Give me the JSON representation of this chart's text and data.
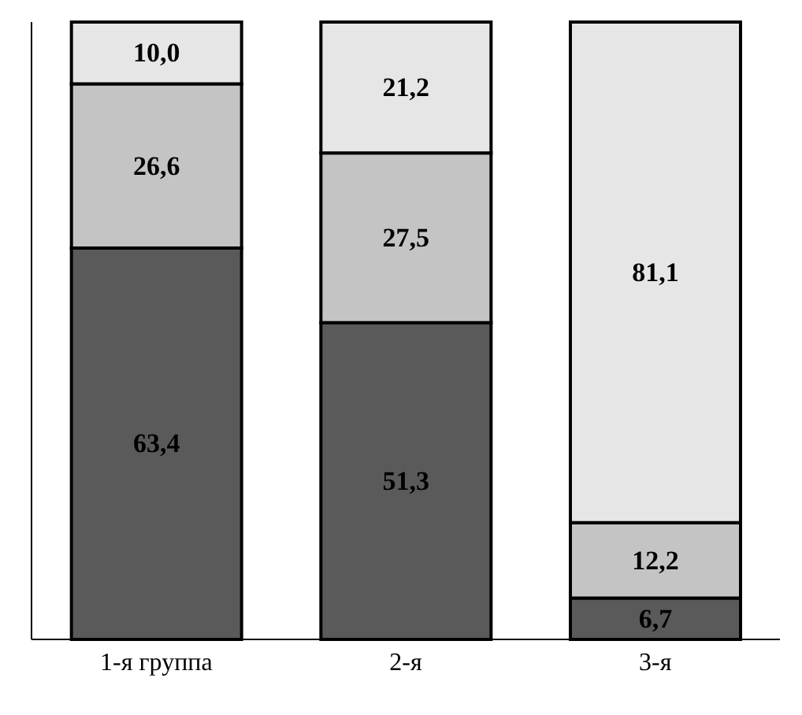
{
  "chart_data": {
    "type": "bar",
    "stacked": true,
    "categories": [
      "1-я группа",
      "2-я",
      "3-я"
    ],
    "series": [
      {
        "color": "#5a5a5a",
        "values": [
          63.4,
          51.3,
          6.7
        ],
        "value_labels": [
          "63,4",
          "51,3",
          "6,7"
        ]
      },
      {
        "color": "#c4c4c4",
        "values": [
          26.6,
          27.5,
          12.2
        ],
        "value_labels": [
          "26,6",
          "27,5",
          "12,2"
        ]
      },
      {
        "color": "#e6e6e6",
        "values": [
          10.0,
          21.2,
          81.1
        ],
        "value_labels": [
          "10,0",
          "21,2",
          "81,1"
        ]
      }
    ]
  }
}
